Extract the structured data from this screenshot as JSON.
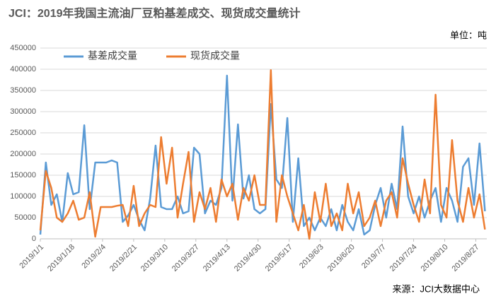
{
  "chart_data": {
    "type": "line",
    "title": "JCI：2019年我国主流油厂豆粕基差成交、现货成交量统计",
    "unit_label": "单位：吨",
    "source": "来源：JCI大数据中心",
    "x": [
      "2019/1/1",
      "2019/1/4",
      "2019/1/7",
      "2019/1/10",
      "2019/1/13",
      "2019/1/16",
      "2019/1/19",
      "2019/1/22",
      "2019/1/25",
      "2019/1/28",
      "2019/1/31",
      "2019/2/3",
      "2019/2/6",
      "2019/2/9",
      "2019/2/12",
      "2019/2/15",
      "2019/2/18",
      "2019/2/21",
      "2019/2/24",
      "2019/2/27",
      "2019/3/2",
      "2019/3/5",
      "2019/3/8",
      "2019/3/11",
      "2019/3/14",
      "2019/3/17",
      "2019/3/20",
      "2019/3/23",
      "2019/3/26",
      "2019/3/29",
      "2019/4/1",
      "2019/4/4",
      "2019/4/7",
      "2019/4/10",
      "2019/4/13",
      "2019/4/16",
      "2019/4/19",
      "2019/4/22",
      "2019/4/25",
      "2019/4/28",
      "2019/5/1",
      "2019/5/4",
      "2019/5/7",
      "2019/5/10",
      "2019/5/13",
      "2019/5/16",
      "2019/5/19",
      "2019/5/22",
      "2019/5/25",
      "2019/5/28",
      "2019/5/31",
      "2019/6/3",
      "2019/6/6",
      "2019/6/9",
      "2019/6/12",
      "2019/6/15",
      "2019/6/18",
      "2019/6/21",
      "2019/6/24",
      "2019/6/27",
      "2019/6/30",
      "2019/7/3",
      "2019/7/6",
      "2019/7/9",
      "2019/7/12",
      "2019/7/15",
      "2019/7/18",
      "2019/7/21",
      "2019/7/24",
      "2019/7/27",
      "2019/7/30",
      "2019/8/2",
      "2019/8/5",
      "2019/8/8",
      "2019/8/11",
      "2019/8/14",
      "2019/8/17",
      "2019/8/20",
      "2019/8/23",
      "2019/8/26",
      "2019/8/29",
      "2019/9/1"
    ],
    "series": [
      {
        "name": "基差成交量",
        "color": "#5b9bd5",
        "values": [
          10000,
          180000,
          80000,
          105000,
          40000,
          155000,
          105000,
          110000,
          268000,
          70000,
          180000,
          180000,
          180000,
          185000,
          180000,
          40000,
          55000,
          80000,
          45000,
          20000,
          95000,
          220000,
          75000,
          70000,
          70000,
          100000,
          60000,
          65000,
          215000,
          200000,
          60000,
          90000,
          80000,
          120000,
          385000,
          90000,
          270000,
          95000,
          150000,
          70000,
          60000,
          70000,
          318000,
          140000,
          120000,
          285000,
          40000,
          190000,
          30000,
          50000,
          20000,
          50000,
          30000,
          70000,
          20000,
          80000,
          40000,
          20000,
          70000,
          10000,
          20000,
          80000,
          120000,
          50000,
          130000,
          70000,
          265000,
          100000,
          60000,
          100000,
          50000,
          90000,
          120000,
          40000,
          120000,
          90000,
          40000,
          170000,
          190000,
          80000,
          225000,
          65000
        ]
      },
      {
        "name": "现货成交量",
        "color": "#ed7d31",
        "values": [
          20000,
          160000,
          120000,
          50000,
          40000,
          60000,
          90000,
          45000,
          50000,
          110000,
          5000,
          75000,
          75000,
          75000,
          78000,
          80000,
          30000,
          125000,
          30000,
          60000,
          80000,
          75000,
          240000,
          130000,
          215000,
          50000,
          130000,
          205000,
          40000,
          110000,
          70000,
          120000,
          40000,
          140000,
          100000,
          130000,
          45000,
          120000,
          90000,
          150000,
          80000,
          80000,
          398000,
          40000,
          150000,
          100000,
          60000,
          20000,
          80000,
          0,
          110000,
          40000,
          130000,
          30000,
          60000,
          20000,
          130000,
          60000,
          110000,
          30000,
          50000,
          90000,
          30000,
          90000,
          110000,
          50000,
          190000,
          130000,
          80000,
          40000,
          140000,
          60000,
          340000,
          80000,
          50000,
          233000,
          90000,
          40000,
          120000,
          50000,
          105000,
          22000
        ]
      }
    ],
    "xlim": [
      "2019/1/1",
      "2019/9/2"
    ],
    "xticks": [
      "2019/1/1",
      "2019/1/18",
      "2019/2/4",
      "2019/2/21",
      "2019/3/10",
      "2019/3/27",
      "2019/4/13",
      "2019/4/30",
      "2019/5/17",
      "2019/6/3",
      "2019/6/20",
      "2019/7/7",
      "2019/7/24",
      "2019/8/10",
      "2019/8/27"
    ],
    "ylim": [
      0,
      450000
    ],
    "yticks": [
      0,
      50000,
      100000,
      150000,
      200000,
      250000,
      300000,
      350000,
      400000,
      450000
    ],
    "grid": true
  }
}
